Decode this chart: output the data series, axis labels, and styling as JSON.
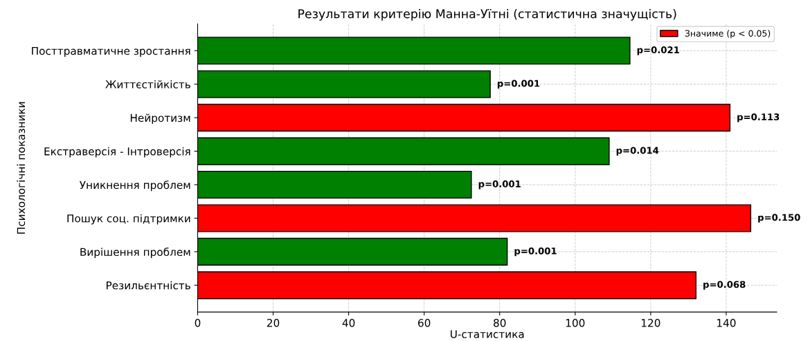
{
  "chart_data": {
    "type": "bar",
    "orientation": "horizontal",
    "title": "Результати критерію Манна-Уїтні (статистична значущість)",
    "xlabel": "U-статистика",
    "ylabel": "Психологічні показники",
    "categories": [
      "Посттравматичне зростання",
      "Життєстійкість",
      "Нейротизм",
      "Екстраверсія - Інтроверсія",
      "Уникнення проблем",
      "Пошук соц. підтримки",
      "Вирішення проблем",
      "Резильєнтність"
    ],
    "series": [
      {
        "name": "Значиме (p < 0.05)",
        "color": "#ff0000",
        "values": [
          null,
          null,
          141,
          null,
          null,
          146.5,
          null,
          132
        ]
      },
      {
        "color": "#008000",
        "values": [
          114.5,
          77.5,
          null,
          109,
          72.5,
          null,
          82,
          null
        ]
      }
    ],
    "annotations": [
      {
        "text": "p=0.021",
        "x": 114.5,
        "y": "Посттравматичне зростання"
      },
      {
        "text": "p=0.001",
        "x": 77.5,
        "y": "Життєстійкість"
      },
      {
        "text": "p=0.113",
        "x": 141,
        "y": "Нейротизм"
      },
      {
        "text": "p=0.014",
        "x": 109,
        "y": "Екстраверсія - Інтроверсія"
      },
      {
        "text": "p=0.001",
        "x": 72.5,
        "y": "Уникнення проблем"
      },
      {
        "text": "p=0.150",
        "x": 146.5,
        "y": "Пошук соц. підтримки"
      },
      {
        "text": "p=0.001",
        "x": 82,
        "y": "Вирішення проблем"
      },
      {
        "text": "p=0.068",
        "x": 132,
        "y": "Резильєнтність"
      }
    ],
    "xlim": [
      0,
      153.4
    ],
    "xticks": [
      0,
      20,
      40,
      60,
      80,
      100,
      120,
      140
    ],
    "grid": true,
    "legend": "top right"
  }
}
